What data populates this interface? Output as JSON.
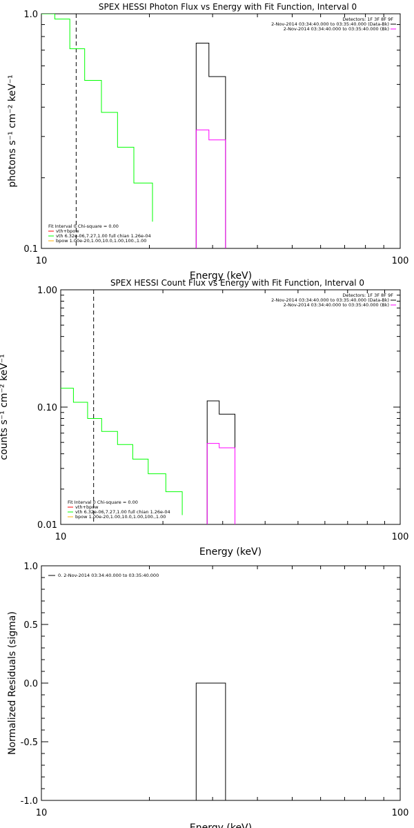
{
  "colors": {
    "background": "#ffffff",
    "axes": "#000000",
    "data": "#000000",
    "thermal_fit": "#ff00ff",
    "vth": "#ff0000",
    "vth_fit": "#00ff00",
    "bpow": "#ffb000"
  },
  "chart_data": [
    {
      "type": "line",
      "title": "SPEX HESSI Photon Flux vs Energy with Fit Function, Interval 0",
      "xlabel": "Energy (keV)",
      "ylabel": "photons s⁻¹ cm⁻² keV⁻¹",
      "xscale": "log",
      "yscale": "log",
      "xlim": [
        10,
        100
      ],
      "ylim": [
        0.1,
        1.0
      ],
      "xticks": [
        "10",
        "100"
      ],
      "yticks": [
        "0.1",
        "1.0"
      ],
      "vline_x": 12.5,
      "detectors": "Detectors: 1F 3F 8F 9F",
      "data_labels": [
        "2-Nov-2014 03:34:40.000 to 03:35:40.000 (Data-Bk)",
        "2-Nov-2014 03:34:40.000 to 03:35:40.000 (Bk)"
      ],
      "legend": [
        "Fit Interval  0   Chi-square = 0.00",
        "vth+bpow",
        "vth 6.32e-06,7.27,1.00  full chian 1.26e-04",
        "bpow 1.00e-20,1.00,10.0,1.00,100.,1.00"
      ],
      "series": [
        {
          "name": "vth+bpow",
          "color": "#00ff00",
          "edges": [
            10,
            10.9,
            12,
            13.2,
            14.7,
            16.3,
            18.1,
            20.4
          ],
          "values": [
            1.0,
            0.95,
            0.71,
            0.52,
            0.38,
            0.27,
            0.19,
            0.13
          ]
        },
        {
          "name": "Data-Bk",
          "color": "#000000",
          "edges": [
            27.0,
            29.3,
            32.6
          ],
          "values": [
            0.75,
            0.54
          ],
          "floor": 0.1
        },
        {
          "name": "Bk",
          "color": "#ff00ff",
          "edges": [
            27.0,
            29.3,
            32.6
          ],
          "values": [
            0.32,
            0.29
          ],
          "floor": 0.1
        }
      ]
    },
    {
      "type": "line",
      "title": "SPEX HESSI Count Flux vs Energy with Fit Function, Interval 0",
      "xlabel": "Energy (keV)",
      "ylabel": "counts s⁻¹ cm⁻² keV⁻¹",
      "xscale": "log",
      "yscale": "log",
      "xlim": [
        10,
        100
      ],
      "ylim": [
        0.01,
        1.0
      ],
      "xticks": [
        "10",
        "100"
      ],
      "yticks": [
        "0.01",
        "0.10",
        "1.00"
      ],
      "vline_x": 12.5,
      "detectors": "Detectors: 1F 3F 8F 9F",
      "data_labels": [
        "2-Nov-2014 03:34:40.000 to 03:35:40.000 (Data-Bk)",
        "2-Nov-2014 03:34:40.000 to 03:35:40.000 (Bk)"
      ],
      "legend": [
        "Fit Interval  0   Chi-square = 0.00",
        "vth+bpow",
        "vth 6.32e-06,7.27,1.00  full chian 1.26e-04",
        "bpow 1.00e-20,1.00,10.0,1.00,100.,1.00"
      ],
      "series": [
        {
          "name": "vth+bpow",
          "color": "#00ff00",
          "edges": [
            10,
            10.9,
            12,
            13.2,
            14.7,
            16.3,
            18.1,
            20.4,
            22.8
          ],
          "values": [
            0.145,
            0.11,
            0.08,
            0.062,
            0.048,
            0.036,
            0.027,
            0.019,
            0.012
          ]
        },
        {
          "name": "Data-Bk",
          "color": "#000000",
          "edges": [
            27.0,
            29.3,
            32.6
          ],
          "values": [
            0.113,
            0.087
          ],
          "floor": 0.01
        },
        {
          "name": "Bk",
          "color": "#ff00ff",
          "edges": [
            27.0,
            29.3,
            32.6
          ],
          "values": [
            0.049,
            0.045
          ],
          "floor": 0.01
        }
      ]
    },
    {
      "type": "line",
      "title": "",
      "xlabel": "Energy (keV)",
      "ylabel": "Normalized Residuals (sigma)",
      "xscale": "log",
      "yscale": "linear",
      "xlim": [
        10,
        100
      ],
      "ylim": [
        -1.0,
        1.0
      ],
      "xticks": [
        "10",
        "100"
      ],
      "yticks": [
        "-1.0",
        "-0.5",
        "0.0",
        "0.5",
        "1.0"
      ],
      "legend": [
        "0.  2-Nov-2014 03:34:40.000 to 03:35:40.000"
      ],
      "series": [
        {
          "name": "residuals",
          "color": "#000000",
          "edges": [
            27.0,
            29.3,
            32.6
          ],
          "values": [
            0.0,
            0.0
          ],
          "floor": -1.0
        }
      ]
    }
  ]
}
